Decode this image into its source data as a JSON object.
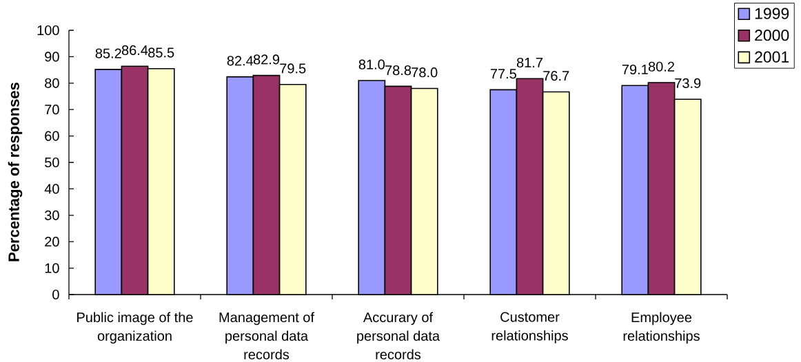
{
  "chart_data": {
    "type": "bar",
    "ylabel": "Percentage of responses",
    "categories": [
      "Public image of the organization",
      "Management of personal data records",
      "Accurary of personal data records",
      "Customer relationships",
      "Employee relationships"
    ],
    "series": [
      {
        "name": "1999",
        "color": "#9999ff",
        "values": [
          85.2,
          82.4,
          81.0,
          77.5,
          79.1
        ],
        "value_labels": [
          "85.2",
          "82.4",
          "81.0",
          "77.5",
          "79.1"
        ]
      },
      {
        "name": "2000",
        "color": "#993366",
        "values": [
          86.4,
          82.9,
          78.8,
          81.7,
          80.2
        ],
        "value_labels": [
          "86.4",
          "82.9",
          "78.8",
          "81.7",
          "80.2"
        ]
      },
      {
        "name": "2001",
        "color": "#ffffcc",
        "values": [
          85.5,
          79.5,
          78.0,
          76.7,
          73.9
        ],
        "value_labels": [
          "85.5",
          "79.5",
          "78.0",
          "76.7",
          "73.9"
        ]
      }
    ],
    "ylim": [
      0,
      100
    ],
    "yticks": [
      0,
      10,
      20,
      30,
      40,
      50,
      60,
      70,
      80,
      90,
      100
    ],
    "legend": "top right"
  }
}
